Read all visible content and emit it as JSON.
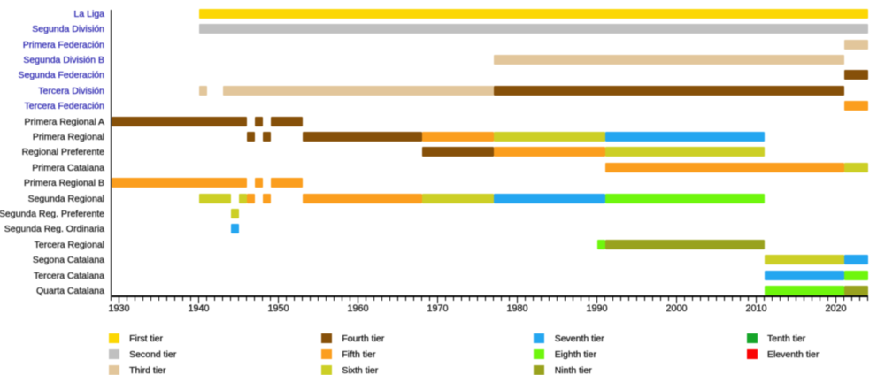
{
  "chart_data": {
    "type": "bar",
    "subtype": "gantt-timeline",
    "title": "",
    "xlabel": "",
    "ylabel": "",
    "axis": {
      "start_year": 1929,
      "end_year": 2024,
      "minor_tick_step": 1,
      "major_tick_step": 10,
      "major_tick_labels": [
        "1930",
        "1940",
        "1950",
        "1960",
        "1970",
        "1980",
        "1990",
        "2000",
        "2010",
        "2020"
      ],
      "major_tick_years": [
        1930,
        1940,
        1950,
        1960,
        1970,
        1980,
        1990,
        2000,
        2010,
        2020
      ]
    },
    "tier_colors": {
      "t1": "#fcd703",
      "t2": "#c0c0c0",
      "t3": "#e2c69b",
      "t4": "#865009",
      "t5": "#fb9e1e",
      "t6": "#cccf26",
      "t7": "#24a6f0",
      "t8": "#6ff60d",
      "t9": "#99a21e",
      "t10": "#16a529",
      "t11": "#fa0404"
    },
    "rows": [
      {
        "label": "La Liga",
        "link": true,
        "segments": [
          {
            "from": 1940,
            "to": 2024,
            "tier": "t1"
          }
        ]
      },
      {
        "label": "Segunda División",
        "link": true,
        "segments": [
          {
            "from": 1940,
            "to": 2024,
            "tier": "t2"
          }
        ]
      },
      {
        "label": "Primera Federación",
        "link": true,
        "segments": [
          {
            "from": 2021,
            "to": 2024,
            "tier": "t3"
          }
        ]
      },
      {
        "label": "Segunda División B",
        "link": true,
        "segments": [
          {
            "from": 1977,
            "to": 2021,
            "tier": "t3"
          }
        ]
      },
      {
        "label": "Segunda Federación",
        "link": true,
        "segments": [
          {
            "from": 2021,
            "to": 2024,
            "tier": "t4"
          }
        ]
      },
      {
        "label": "Tercera División",
        "link": true,
        "segments": [
          {
            "from": 1940,
            "to": 1941,
            "tier": "t3"
          },
          {
            "from": 1943,
            "to": 1977,
            "tier": "t3"
          },
          {
            "from": 1977,
            "to": 2021,
            "tier": "t4"
          }
        ]
      },
      {
        "label": "Tercera Federación",
        "link": true,
        "segments": [
          {
            "from": 2021,
            "to": 2024,
            "tier": "t5"
          }
        ]
      },
      {
        "label": "Primera Regional A",
        "link": false,
        "segments": [
          {
            "from": 1929,
            "to": 1946,
            "tier": "t4"
          },
          {
            "from": 1947,
            "to": 1948,
            "tier": "t4"
          },
          {
            "from": 1949,
            "to": 1953,
            "tier": "t4"
          }
        ]
      },
      {
        "label": "Primera Regional",
        "link": false,
        "segments": [
          {
            "from": 1946,
            "to": 1947,
            "tier": "t4"
          },
          {
            "from": 1948,
            "to": 1949,
            "tier": "t4"
          },
          {
            "from": 1953,
            "to": 1968,
            "tier": "t4"
          },
          {
            "from": 1968,
            "to": 1977,
            "tier": "t5"
          },
          {
            "from": 1977,
            "to": 1991,
            "tier": "t6"
          },
          {
            "from": 1991,
            "to": 2011,
            "tier": "t7"
          }
        ]
      },
      {
        "label": "Regional Preferente",
        "link": false,
        "segments": [
          {
            "from": 1968,
            "to": 1977,
            "tier": "t4"
          },
          {
            "from": 1977,
            "to": 1991,
            "tier": "t5"
          },
          {
            "from": 1991,
            "to": 2011,
            "tier": "t6"
          }
        ]
      },
      {
        "label": "Primera Catalana",
        "link": false,
        "segments": [
          {
            "from": 1991,
            "to": 2021,
            "tier": "t5"
          },
          {
            "from": 2021,
            "to": 2024,
            "tier": "t6"
          }
        ]
      },
      {
        "label": "Primera Regional B",
        "link": false,
        "segments": [
          {
            "from": 1929,
            "to": 1946,
            "tier": "t5"
          },
          {
            "from": 1947,
            "to": 1948,
            "tier": "t5"
          },
          {
            "from": 1949,
            "to": 1953,
            "tier": "t5"
          }
        ]
      },
      {
        "label": "Segunda Regional",
        "link": false,
        "segments": [
          {
            "from": 1940,
            "to": 1944,
            "tier": "t6"
          },
          {
            "from": 1945,
            "to": 1946,
            "tier": "t6"
          },
          {
            "from": 1946,
            "to": 1947,
            "tier": "t5"
          },
          {
            "from": 1948,
            "to": 1949,
            "tier": "t5"
          },
          {
            "from": 1953,
            "to": 1968,
            "tier": "t5"
          },
          {
            "from": 1968,
            "to": 1977,
            "tier": "t6"
          },
          {
            "from": 1977,
            "to": 1991,
            "tier": "t7"
          },
          {
            "from": 1991,
            "to": 2011,
            "tier": "t8"
          }
        ]
      },
      {
        "label": "Segunda Reg. Preferente",
        "link": false,
        "segments": [
          {
            "from": 1944,
            "to": 1945,
            "tier": "t6"
          }
        ]
      },
      {
        "label": "Segunda Reg. Ordinaria",
        "link": false,
        "segments": [
          {
            "from": 1944,
            "to": 1945,
            "tier": "t7"
          }
        ]
      },
      {
        "label": "Tercera Regional",
        "link": false,
        "segments": [
          {
            "from": 1990,
            "to": 1991,
            "tier": "t8"
          },
          {
            "from": 1991,
            "to": 2011,
            "tier": "t9"
          }
        ]
      },
      {
        "label": "Segona Catalana",
        "link": false,
        "segments": [
          {
            "from": 2011,
            "to": 2021,
            "tier": "t6"
          },
          {
            "from": 2021,
            "to": 2024,
            "tier": "t7"
          }
        ]
      },
      {
        "label": "Tercera Catalana",
        "link": false,
        "segments": [
          {
            "from": 2011,
            "to": 2021,
            "tier": "t7"
          },
          {
            "from": 2021,
            "to": 2024,
            "tier": "t8"
          }
        ]
      },
      {
        "label": "Quarta Catalana",
        "link": false,
        "segments": [
          {
            "from": 2011,
            "to": 2021,
            "tier": "t8"
          },
          {
            "from": 2021,
            "to": 2024,
            "tier": "t9"
          }
        ]
      }
    ],
    "legend": {
      "position": "bottom",
      "items": [
        {
          "label": "First tier",
          "tier": "t1",
          "col": 0,
          "row": 0
        },
        {
          "label": "Second tier",
          "tier": "t2",
          "col": 0,
          "row": 1
        },
        {
          "label": "Third tier",
          "tier": "t3",
          "col": 0,
          "row": 2
        },
        {
          "label": "Fourth tier",
          "tier": "t4",
          "col": 1,
          "row": 0
        },
        {
          "label": "Fifth tier",
          "tier": "t5",
          "col": 1,
          "row": 1
        },
        {
          "label": "Sixth tier",
          "tier": "t6",
          "col": 1,
          "row": 2
        },
        {
          "label": "Seventh tier",
          "tier": "t7",
          "col": 2,
          "row": 0
        },
        {
          "label": "Eighth tier",
          "tier": "t8",
          "col": 2,
          "row": 1
        },
        {
          "label": "Ninth tier",
          "tier": "t9",
          "col": 2,
          "row": 2
        },
        {
          "label": "Tenth tier",
          "tier": "t10",
          "col": 3,
          "row": 0
        },
        {
          "label": "Eleventh tier",
          "tier": "t11",
          "col": 3,
          "row": 1
        }
      ]
    }
  }
}
